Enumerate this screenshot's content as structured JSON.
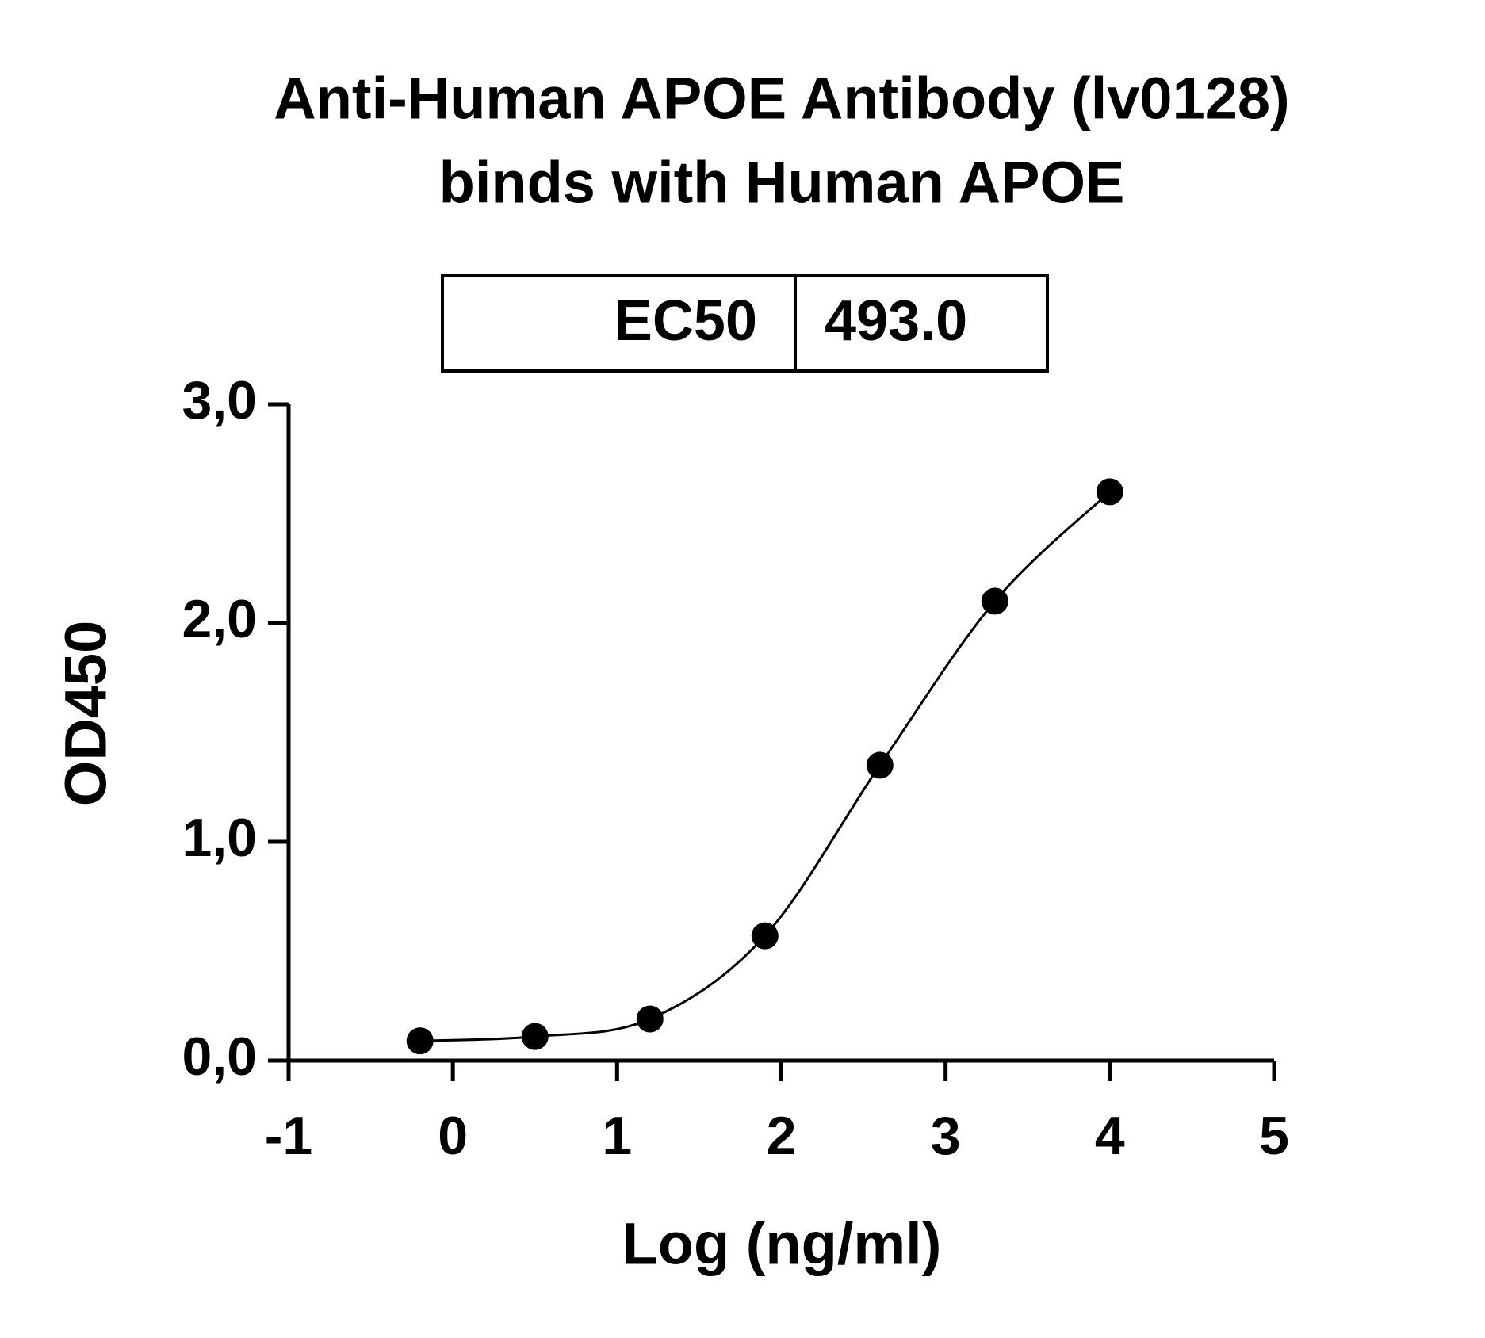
{
  "chart_data": {
    "type": "scatter",
    "title": [
      "Anti-Human APOE Antibody (lv0128)",
      "binds with Human APOE"
    ],
    "ec50_table": {
      "label": "EC50",
      "value": "493.0"
    },
    "x_label": "Log (ng/ml)",
    "y_label": "OD450",
    "series": [
      {
        "color": "#000000",
        "x": [
          -0.2,
          0.5,
          1.2,
          1.9,
          2.6,
          3.3,
          4.0
        ],
        "values": [
          0.09,
          0.11,
          0.19,
          0.57,
          1.35,
          2.1,
          2.6
        ]
      }
    ],
    "xlim": [
      -1,
      5
    ],
    "xticks": [
      -1,
      0,
      1,
      2,
      3,
      4,
      5
    ],
    "ylim": [
      0,
      3
    ],
    "yticks": [
      {
        "value": 0,
        "label": "0,0"
      },
      {
        "value": 1,
        "label": "1,0"
      },
      {
        "value": 2,
        "label": "2,0"
      },
      {
        "value": 3,
        "label": "3,0"
      }
    ],
    "grid": false
  }
}
